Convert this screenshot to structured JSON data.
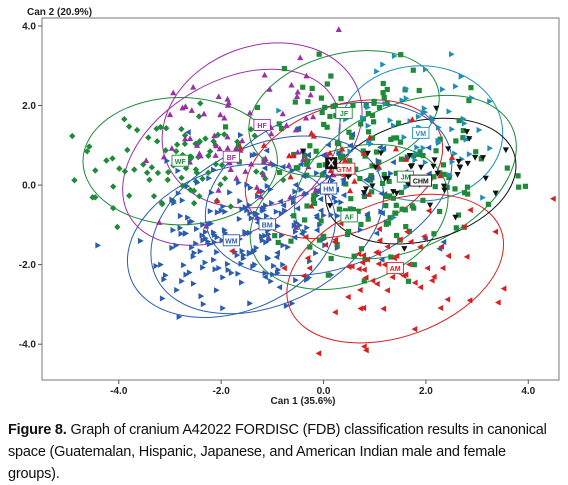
{
  "figure": {
    "caption_label": "Figure 8.",
    "caption_text": "Graph of cranium A42022 FORDISC (FDB) classification results in canonical space (Guatemalan, Hispanic, Japanese, and American Indian male and female groups)."
  },
  "chart_data": {
    "type": "scatter",
    "xlabel": "Can 1 (35.6%)",
    "ylabel": "Can 2 (20.9%)",
    "xlim": [
      -5.5,
      4.6
    ],
    "ylim": [
      -4.9,
      4.2
    ],
    "xticks": [
      -4.0,
      -2.0,
      0.0,
      2.0,
      4.0
    ],
    "xtick_labels": [
      "-4.0",
      "-2.0",
      "0.0",
      "2.0",
      "4.0"
    ],
    "yticks": [
      -4.0,
      -2.0,
      0.0,
      2.0,
      4.0
    ],
    "ytick_labels": [
      "-4.0",
      "-2.0",
      "0.0",
      "2.0",
      "4.0"
    ],
    "grid": false,
    "unknown_case": {
      "label": "X",
      "x": 0.15,
      "y": 0.55
    },
    "groups": [
      {
        "label": "WF",
        "color": "#1f8a3a",
        "marker": "diamond",
        "cx": -2.8,
        "cy": 0.6,
        "rx": 1.9,
        "ry": 1.6,
        "rot": 0,
        "n": 90
      },
      {
        "label": "JF",
        "color": "#1f8a3a",
        "marker": "square",
        "cx": 0.4,
        "cy": 1.8,
        "rx": 1.9,
        "ry": 1.5,
        "rot": -15,
        "n": 60
      },
      {
        "label": "JM",
        "color": "#1f8a3a",
        "marker": "square",
        "cx": 1.6,
        "cy": 0.2,
        "rx": 2.3,
        "ry": 1.8,
        "rot": -25,
        "n": 90
      },
      {
        "label": "HF",
        "color": "#9b2fa6",
        "marker": "triangle-up",
        "cx": -1.2,
        "cy": 1.5,
        "rx": 2.0,
        "ry": 2.0,
        "rot": -20,
        "n": 40
      },
      {
        "label": "BF",
        "color": "#9b2fa6",
        "marker": "triangle-up",
        "cx": -1.8,
        "cy": 0.7,
        "rx": 2.3,
        "ry": 1.9,
        "rot": -30,
        "n": 40
      },
      {
        "label": "WM",
        "color": "#2a5db0",
        "marker": "triangle-right",
        "cx": -1.8,
        "cy": -1.4,
        "rx": 2.1,
        "ry": 1.8,
        "rot": -20,
        "n": 140
      },
      {
        "label": "BM",
        "color": "#2a5db0",
        "marker": "triangle-right",
        "cx": -1.1,
        "cy": -1.0,
        "rx": 2.4,
        "ry": 2.0,
        "rot": -25,
        "n": 60
      },
      {
        "label": "HM",
        "color": "#2a5db0",
        "marker": "triangle-left",
        "cx": 0.1,
        "cy": -0.1,
        "rx": 2.5,
        "ry": 2.0,
        "rot": -20,
        "n": 60
      },
      {
        "label": "VM",
        "color": "#1f8fb8",
        "marker": "triangle-right",
        "cx": 1.9,
        "cy": 1.3,
        "rx": 1.6,
        "ry": 1.7,
        "rot": 0,
        "n": 60
      },
      {
        "label": "GTM",
        "color": "#d92020",
        "marker": "triangle-up",
        "cx": 0.4,
        "cy": 0.4,
        "rx": 2.0,
        "ry": 1.6,
        "rot": -20,
        "n": 30
      },
      {
        "label": "AF",
        "color": "#1f8a3a",
        "marker": "square",
        "cx": 0.5,
        "cy": -0.8,
        "rx": 2.0,
        "ry": 1.7,
        "rot": -20,
        "n": 40
      },
      {
        "label": "AM",
        "color": "#d92020",
        "marker": "triangle-left",
        "cx": 1.4,
        "cy": -2.1,
        "rx": 2.2,
        "ry": 1.7,
        "rot": -20,
        "n": 70
      },
      {
        "label": "CHM",
        "color": "#111111",
        "marker": "triangle-down",
        "cx": 1.9,
        "cy": 0.1,
        "rx": 1.9,
        "ry": 1.5,
        "rot": -15,
        "n": 45
      }
    ]
  }
}
